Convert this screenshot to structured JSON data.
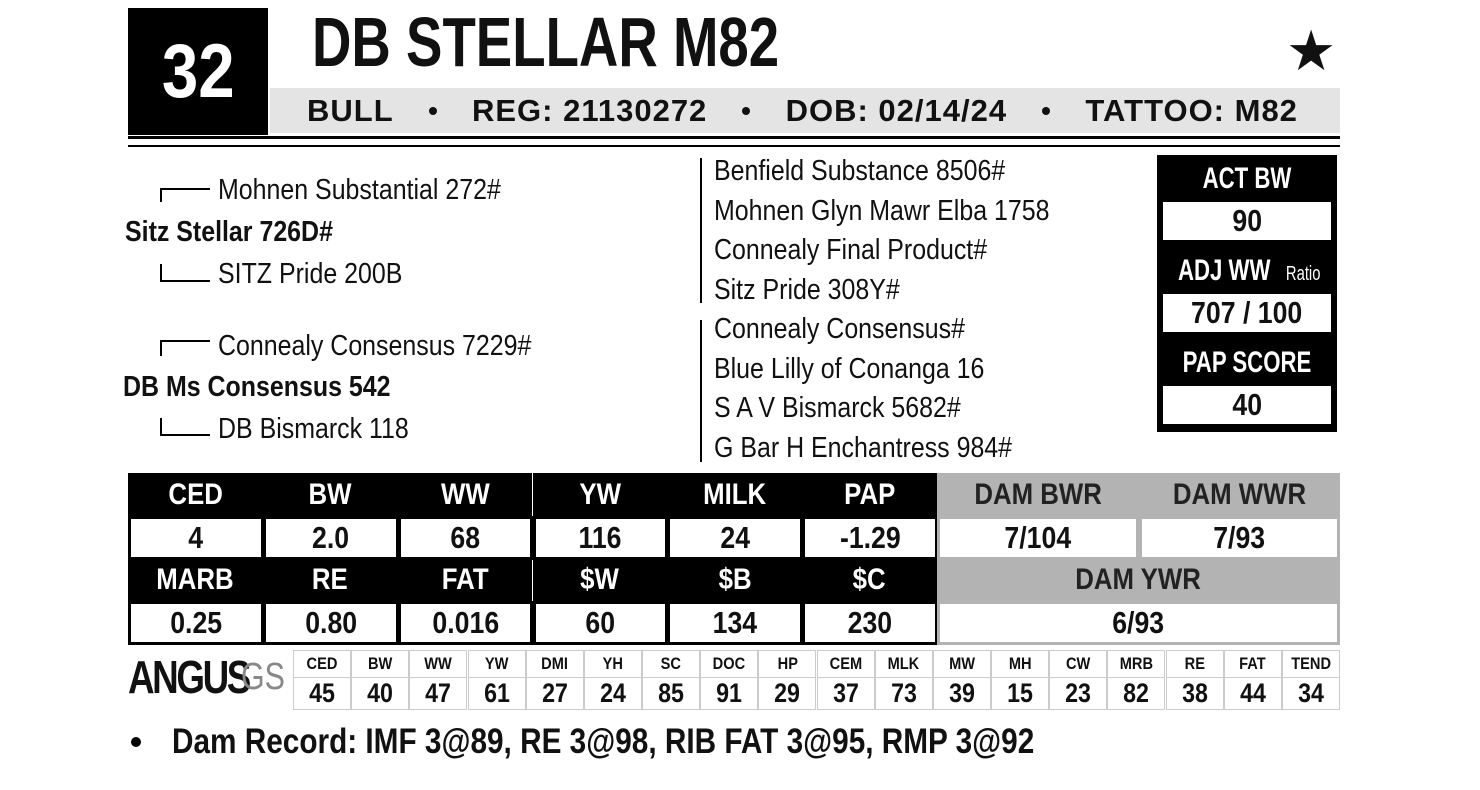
{
  "lot": "32",
  "name": "DB STELLAR M82",
  "star": "★",
  "info": [
    "BULL",
    "REG: 21130272",
    "DOB: 02/14/24",
    "TATTOO: M82"
  ],
  "pedigree": {
    "sire": {
      "name": "Sitz Stellar 726D#",
      "sire": "Mohnen Substantial 272#",
      "dam": "SITZ Pride 200B"
    },
    "dam": {
      "name": "DB Ms Consensus 542",
      "sire": "Connealy Consensus 7229#",
      "dam": "DB Bismarck 118"
    },
    "sire_ancestors": [
      "Benfield Substance 8506#",
      "Mohnen Glyn Mawr Elba 1758",
      "Connealy Final Product#",
      "Sitz Pride 308Y#"
    ],
    "dam_ancestors": [
      "Connealy Consensus#",
      "Blue Lilly of Conanga 16",
      "S A V Bismarck 5682#",
      "G Bar H Enchantress 984#"
    ]
  },
  "stats": [
    {
      "label": "ACT BW",
      "value": "90"
    },
    {
      "label": "ADJ WW",
      "sublabel": "Ratio",
      "value": "707 / 100"
    },
    {
      "label": "PAP SCORE",
      "value": "40"
    }
  ],
  "epd": {
    "row1": {
      "headers": [
        "CED",
        "BW",
        "WW",
        "YW",
        "MILK",
        "PAP"
      ],
      "values": [
        "4",
        "2.0",
        "68",
        "116",
        "24",
        "-1.29"
      ]
    },
    "dam1": {
      "headers": [
        "DAM BWR",
        "DAM WWR"
      ],
      "values": [
        "7/104",
        "7/93"
      ]
    },
    "row2": {
      "headers": [
        "MARB",
        "RE",
        "FAT",
        "$W",
        "$B",
        "$C"
      ],
      "values": [
        "0.25",
        "0.80",
        "0.016",
        "60",
        "134",
        "230"
      ]
    },
    "dam2": {
      "headers": [
        "DAM YWR"
      ],
      "values": [
        "6/93"
      ]
    }
  },
  "angus_gs": {
    "logo": "ANGUS",
    "logo_suffix": "GS",
    "headers": [
      "CED",
      "BW",
      "WW",
      "YW",
      "DMI",
      "YH",
      "SC",
      "DOC",
      "HP",
      "CEM",
      "MLK",
      "MW",
      "MH",
      "CW",
      "MRB",
      "RE",
      "FAT",
      "TEND"
    ],
    "values": [
      "45",
      "40",
      "47",
      "61",
      "27",
      "24",
      "85",
      "91",
      "29",
      "37",
      "73",
      "39",
      "15",
      "23",
      "82",
      "38",
      "44",
      "34"
    ]
  },
  "footer": "Dam Record: IMF 3@89, RE 3@98, RIB FAT 3@95, RMP 3@92"
}
